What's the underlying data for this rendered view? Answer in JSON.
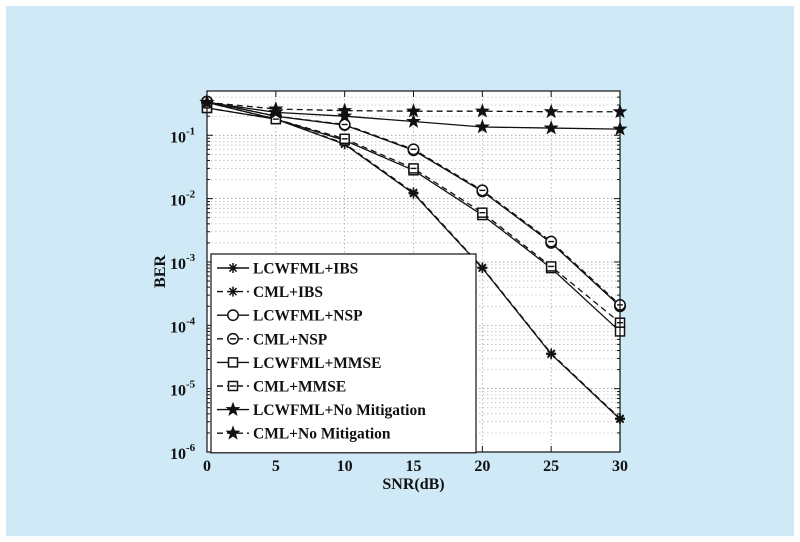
{
  "chart_data": {
    "type": "line",
    "title": "",
    "xlabel": "SNR(dB)",
    "ylabel": "BER",
    "x": [
      0,
      5,
      10,
      15,
      20,
      25,
      30
    ],
    "xlim": [
      0,
      30
    ],
    "ylim": [
      1e-06,
      0.5
    ],
    "yscale": "log",
    "grid": true,
    "legend_position": "bottom-left",
    "x_ticks": [
      "0",
      "5",
      "10",
      "15",
      "20",
      "25",
      "30"
    ],
    "y_ticks": [
      {
        "base": "10",
        "exp": "-6"
      },
      {
        "base": "10",
        "exp": "-5"
      },
      {
        "base": "10",
        "exp": "-4"
      },
      {
        "base": "10",
        "exp": "-3"
      },
      {
        "base": "10",
        "exp": "-2"
      },
      {
        "base": "10",
        "exp": "-1"
      }
    ],
    "series": [
      {
        "name": "LCWFML+IBS",
        "marker": "asterisk",
        "dash": "solid",
        "values": [
          0.33,
          0.18,
          0.072,
          0.012,
          0.0008,
          3.5e-05,
          3.3e-06
        ]
      },
      {
        "name": "CML+IBS",
        "marker": "asterisk",
        "dash": "dashed",
        "values": [
          0.33,
          0.18,
          0.074,
          0.0125,
          0.00082,
          3.6e-05,
          3.4e-06
        ]
      },
      {
        "name": "LCWFML+NSP",
        "marker": "circle",
        "dash": "solid",
        "values": [
          0.34,
          0.2,
          0.145,
          0.058,
          0.013,
          0.002,
          0.0002
        ]
      },
      {
        "name": "CML+NSP",
        "marker": "circle-dash",
        "dash": "dashed",
        "values": [
          0.34,
          0.2,
          0.148,
          0.06,
          0.0135,
          0.0021,
          0.00021
        ]
      },
      {
        "name": "LCWFML+MMSE",
        "marker": "square",
        "dash": "solid",
        "values": [
          0.27,
          0.18,
          0.083,
          0.028,
          0.0055,
          0.0008,
          8e-05
        ]
      },
      {
        "name": "CML+MMSE",
        "marker": "square-dash",
        "dash": "dashed",
        "values": [
          0.27,
          0.18,
          0.088,
          0.03,
          0.006,
          0.00085,
          0.00011
        ]
      },
      {
        "name": "LCWFML+No Mitigation",
        "marker": "star",
        "dash": "solid",
        "values": [
          0.33,
          0.23,
          0.2,
          0.165,
          0.135,
          0.13,
          0.125
        ]
      },
      {
        "name": "CML+No Mitigation",
        "marker": "star",
        "dash": "dashed",
        "values": [
          0.33,
          0.26,
          0.245,
          0.24,
          0.24,
          0.235,
          0.235
        ]
      }
    ]
  },
  "colors": {
    "background": "#cfe9f7",
    "plot_bg": "#ffffff",
    "line": "#111111",
    "grid": "#aaaaaa"
  }
}
